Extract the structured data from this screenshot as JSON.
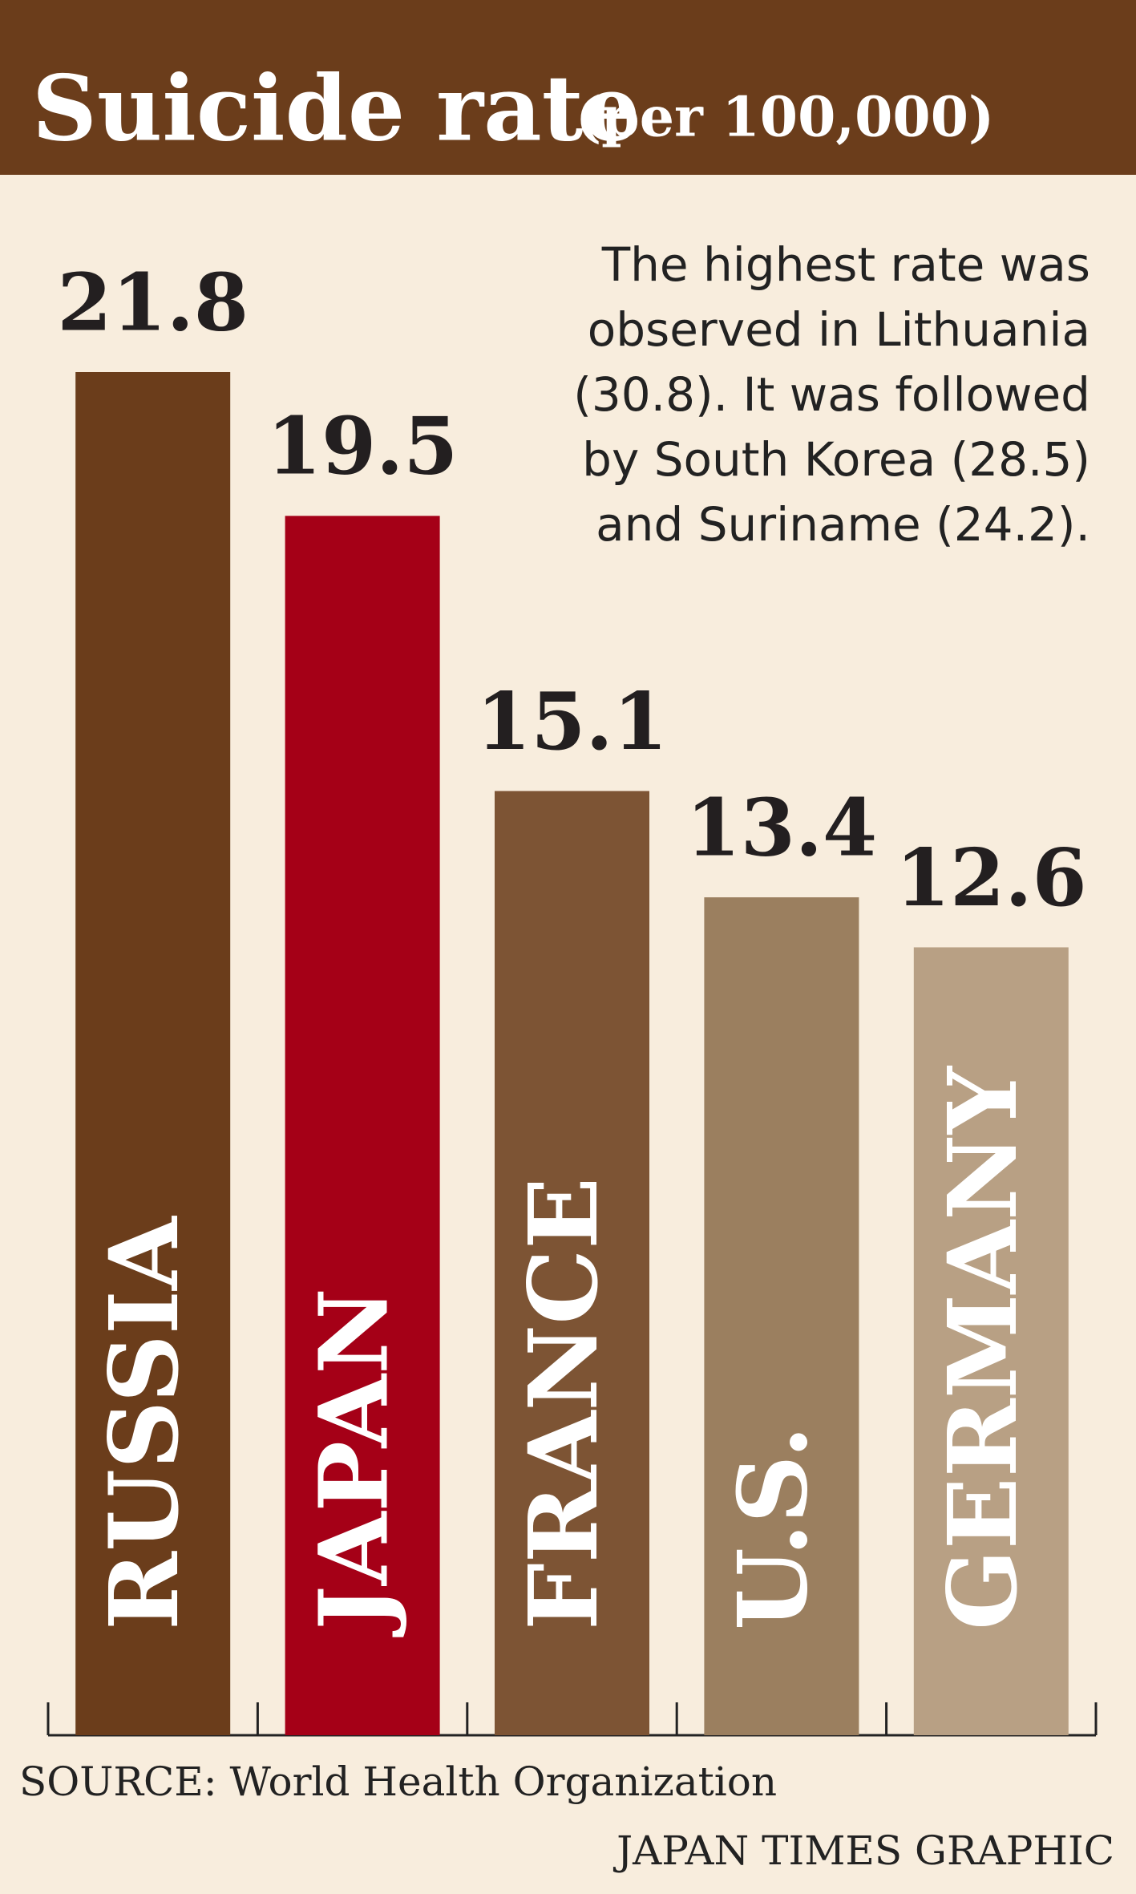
{
  "chart_data": {
    "type": "bar",
    "title": "Suicide rate",
    "subtitle": "(per 100,000)",
    "categories": [
      "RUSSIA",
      "JAPAN",
      "FRANCE",
      "U.S.",
      "GERMANY"
    ],
    "values": [
      21.8,
      19.5,
      15.1,
      13.4,
      12.6
    ],
    "colors": [
      "#6b3d1b",
      "#a50017",
      "#7d5434",
      "#9b7f5f",
      "#b8a084"
    ],
    "annotation": [
      "The highest rate was",
      "observed in Lithuania",
      "(30.8). It was followed",
      "by South Korea (28.5)",
      "and Suriname (24.2)."
    ],
    "source": "SOURCE: World Health Organization",
    "credit": "JAPAN TIMES GRAPHIC"
  }
}
